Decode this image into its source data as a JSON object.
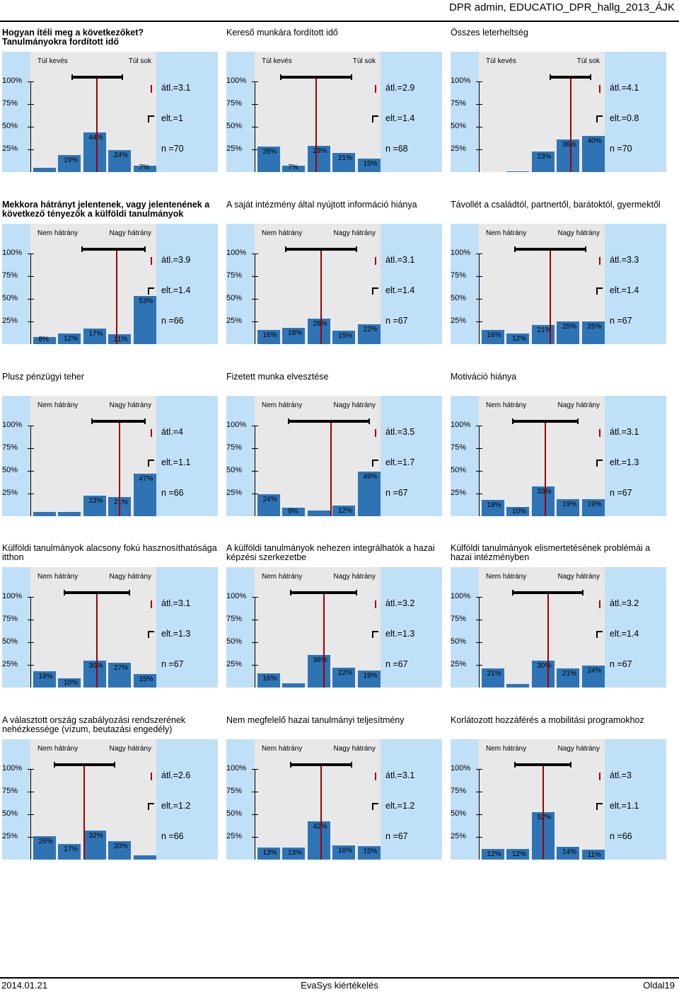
{
  "header": {
    "title": "DPR admin, EDUCATIO_DPR_hallg_2013_ÁJK"
  },
  "footer": {
    "date": "2014.01.21",
    "center": "EvaSys kiértékelés",
    "page": "Oldal19"
  },
  "colors": {
    "bar": "#2e74b5",
    "mean": "#a00000",
    "stats_bg": "#c0e0f8",
    "plot_bg": "#e8e8e8"
  },
  "y_ticks": [
    "100%",
    "75%",
    "50%",
    "25%"
  ],
  "chart_data": [
    {
      "type": "bar",
      "title": "Hogyan ítéli meg a következőket?\nTanulmányokra fordított idő",
      "bold_title": true,
      "left_label": "Túl kevés",
      "right_label": "Túl sok",
      "values": [
        5,
        19,
        44,
        24,
        7
      ],
      "labels": [
        "",
        "19%",
        "44%",
        "24%",
        "7%"
      ],
      "mean": 3.1,
      "sd": 1,
      "n": 70,
      "mean_text": "átl.=3.1",
      "sd_text": "elt.=1",
      "n_text": "n =70",
      "ylim": [
        0,
        100
      ]
    },
    {
      "type": "bar",
      "title": "Kereső munkára fordított idő",
      "bold_title": false,
      "left_label": "Túl kevés",
      "right_label": "Túl sok",
      "values": [
        28,
        7,
        29,
        21,
        15
      ],
      "labels": [
        "28%",
        "7%",
        "29%",
        "21%",
        "15%"
      ],
      "mean": 2.9,
      "sd": 1.4,
      "n": 68,
      "mean_text": "átl.=2.9",
      "sd_text": "elt.=1.4",
      "n_text": "n =68",
      "ylim": [
        0,
        100
      ]
    },
    {
      "type": "bar",
      "title": "Összes leterheltség",
      "bold_title": false,
      "left_label": "Túl kevés",
      "right_label": "Túl sok",
      "values": [
        0,
        1,
        23,
        36,
        40
      ],
      "labels": [
        "",
        "",
        "23%",
        "36%",
        "40%"
      ],
      "mean": 4.1,
      "sd": 0.8,
      "n": 70,
      "mean_text": "átl.=4.1",
      "sd_text": "elt.=0.8",
      "n_text": "n =70",
      "ylim": [
        0,
        100
      ]
    },
    {
      "type": "bar",
      "title": "Mekkora hátrányt jelentenek, vagy jelentenének a következő tényezők a külföldi tanulmányok",
      "bold_title": true,
      "left_label": "Nem hátrány",
      "right_label": "Nagy hátrány",
      "values": [
        8,
        12,
        17,
        11,
        53
      ],
      "labels": [
        "8%",
        "12%",
        "17%",
        "11%",
        "53%"
      ],
      "mean": 3.9,
      "sd": 1.4,
      "n": 66,
      "mean_text": "átl.=3.9",
      "sd_text": "elt.=1.4",
      "n_text": "n =66",
      "ylim": [
        0,
        100
      ]
    },
    {
      "type": "bar",
      "title": "A saját intézmény által nyújtott információ hiánya",
      "bold_title": false,
      "left_label": "Nem hátrány",
      "right_label": "Nagy hátrány",
      "values": [
        16,
        18,
        28,
        15,
        22
      ],
      "labels": [
        "16%",
        "18%",
        "28%",
        "15%",
        "22%"
      ],
      "mean": 3.1,
      "sd": 1.4,
      "n": 67,
      "mean_text": "átl.=3.1",
      "sd_text": "elt.=1.4",
      "n_text": "n =67",
      "ylim": [
        0,
        100
      ]
    },
    {
      "type": "bar",
      "title": "Távollét a családtól, partnertől, barátoktól, gyermektől",
      "bold_title": false,
      "left_label": "Nem hátrány",
      "right_label": "Nagy hátrány",
      "values": [
        16,
        12,
        21,
        25,
        25
      ],
      "labels": [
        "16%",
        "12%",
        "21%",
        "25%",
        "25%"
      ],
      "mean": 3.3,
      "sd": 1.4,
      "n": 67,
      "mean_text": "átl.=3.3",
      "sd_text": "elt.=1.4",
      "n_text": "n =67",
      "ylim": [
        0,
        100
      ]
    },
    {
      "type": "bar",
      "title": "Plusz pénzügyi teher",
      "bold_title": false,
      "left_label": "Nem hátrány",
      "right_label": "Nagy hátrány",
      "values": [
        5,
        5,
        23,
        21,
        47
      ],
      "labels": [
        "",
        "",
        "23%",
        "21%",
        "47%"
      ],
      "mean": 4,
      "sd": 1.1,
      "n": 66,
      "mean_text": "átl.=4",
      "sd_text": "elt.=1.1",
      "n_text": "n =66",
      "ylim": [
        0,
        100
      ]
    },
    {
      "type": "bar",
      "title": "Fizetett munka elvesztése",
      "bold_title": false,
      "left_label": "Nem hátrány",
      "right_label": "Nagy hátrány",
      "values": [
        24,
        9,
        6,
        12,
        49
      ],
      "labels": [
        "24%",
        "9%",
        "",
        "12%",
        "49%"
      ],
      "mean": 3.5,
      "sd": 1.7,
      "n": 67,
      "mean_text": "átl.=3.5",
      "sd_text": "elt.=1.7",
      "n_text": "n =67",
      "ylim": [
        0,
        100
      ]
    },
    {
      "type": "bar",
      "title": "Motiváció hiánya",
      "bold_title": false,
      "left_label": "Nem hátrány",
      "right_label": "Nagy hátrány",
      "values": [
        18,
        10,
        33,
        19,
        19
      ],
      "labels": [
        "18%",
        "10%",
        "33%",
        "19%",
        "19%"
      ],
      "mean": 3.1,
      "sd": 1.3,
      "n": 67,
      "mean_text": "átl.=3.1",
      "sd_text": "elt.=1.3",
      "n_text": "n =67",
      "ylim": [
        0,
        100
      ]
    },
    {
      "type": "bar",
      "title": "Külföldi tanulmányok alacsony fokú hasznosíthatósága itthon",
      "bold_title": false,
      "left_label": "Nem hátrány",
      "right_label": "Nagy hátrány",
      "values": [
        18,
        10,
        30,
        27,
        15
      ],
      "labels": [
        "18%",
        "10%",
        "30%",
        "27%",
        "15%"
      ],
      "mean": 3.1,
      "sd": 1.3,
      "n": 67,
      "mean_text": "átl.=3.1",
      "sd_text": "elt.=1.3",
      "n_text": "n =67",
      "ylim": [
        0,
        100
      ]
    },
    {
      "type": "bar",
      "title": "A külföldi tanulmányok nehezen integrálhatók a hazai képzési szerkezetbe",
      "bold_title": false,
      "left_label": "Nem hátrány",
      "right_label": "Nagy hátrány",
      "values": [
        16,
        5,
        36,
        22,
        19
      ],
      "labels": [
        "16%",
        "",
        "36%",
        "22%",
        "19%"
      ],
      "mean": 3.2,
      "sd": 1.3,
      "n": 67,
      "mean_text": "átl.=3.2",
      "sd_text": "elt.=1.3",
      "n_text": "n =67",
      "ylim": [
        0,
        100
      ]
    },
    {
      "type": "bar",
      "title": "Külföldi tanulmányok elismertetésének problémái a hazai intézményben",
      "bold_title": false,
      "left_label": "Nem hátrány",
      "right_label": "Nagy hátrány",
      "values": [
        21,
        4,
        30,
        21,
        24
      ],
      "labels": [
        "21%",
        "",
        "30%",
        "21%",
        "24%"
      ],
      "mean": 3.2,
      "sd": 1.4,
      "n": 67,
      "mean_text": "átl.=3.2",
      "sd_text": "elt.=1.4",
      "n_text": "n =67",
      "ylim": [
        0,
        100
      ]
    },
    {
      "type": "bar",
      "title": "A választott ország szabályozási rendszerének nehézkessége (vízum, beutazási engedély)",
      "bold_title": false,
      "left_label": "Nem hátrány",
      "right_label": "Nagy hátrány",
      "values": [
        26,
        17,
        32,
        20,
        5
      ],
      "labels": [
        "26%",
        "17%",
        "32%",
        "20%",
        ""
      ],
      "mean": 2.6,
      "sd": 1.2,
      "n": 66,
      "mean_text": "átl.=2.6",
      "sd_text": "elt.=1.2",
      "n_text": "n =66",
      "ylim": [
        0,
        100
      ]
    },
    {
      "type": "bar",
      "title": "Nem megfelelő hazai tanulmányi teljesítmény",
      "bold_title": false,
      "left_label": "Nem hátrány",
      "right_label": "Nagy hátrány",
      "values": [
        13,
        13,
        42,
        16,
        15
      ],
      "labels": [
        "13%",
        "13%",
        "42%",
        "16%",
        "15%"
      ],
      "mean": 3.1,
      "sd": 1.2,
      "n": 67,
      "mean_text": "átl.=3.1",
      "sd_text": "elt.=1.2",
      "n_text": "n =67",
      "ylim": [
        0,
        100
      ]
    },
    {
      "type": "bar",
      "title": "Korlátozott hozzáférés a mobilitási programokhoz",
      "bold_title": false,
      "left_label": "Nem hátrány",
      "right_label": "Nagy hátrány",
      "values": [
        12,
        12,
        52,
        14,
        11
      ],
      "labels": [
        "12%",
        "12%",
        "52%",
        "14%",
        "11%"
      ],
      "mean": 3,
      "sd": 1.1,
      "n": 66,
      "mean_text": "átl.=3",
      "sd_text": "elt.=1.1",
      "n_text": "n =66",
      "ylim": [
        0,
        100
      ]
    }
  ]
}
